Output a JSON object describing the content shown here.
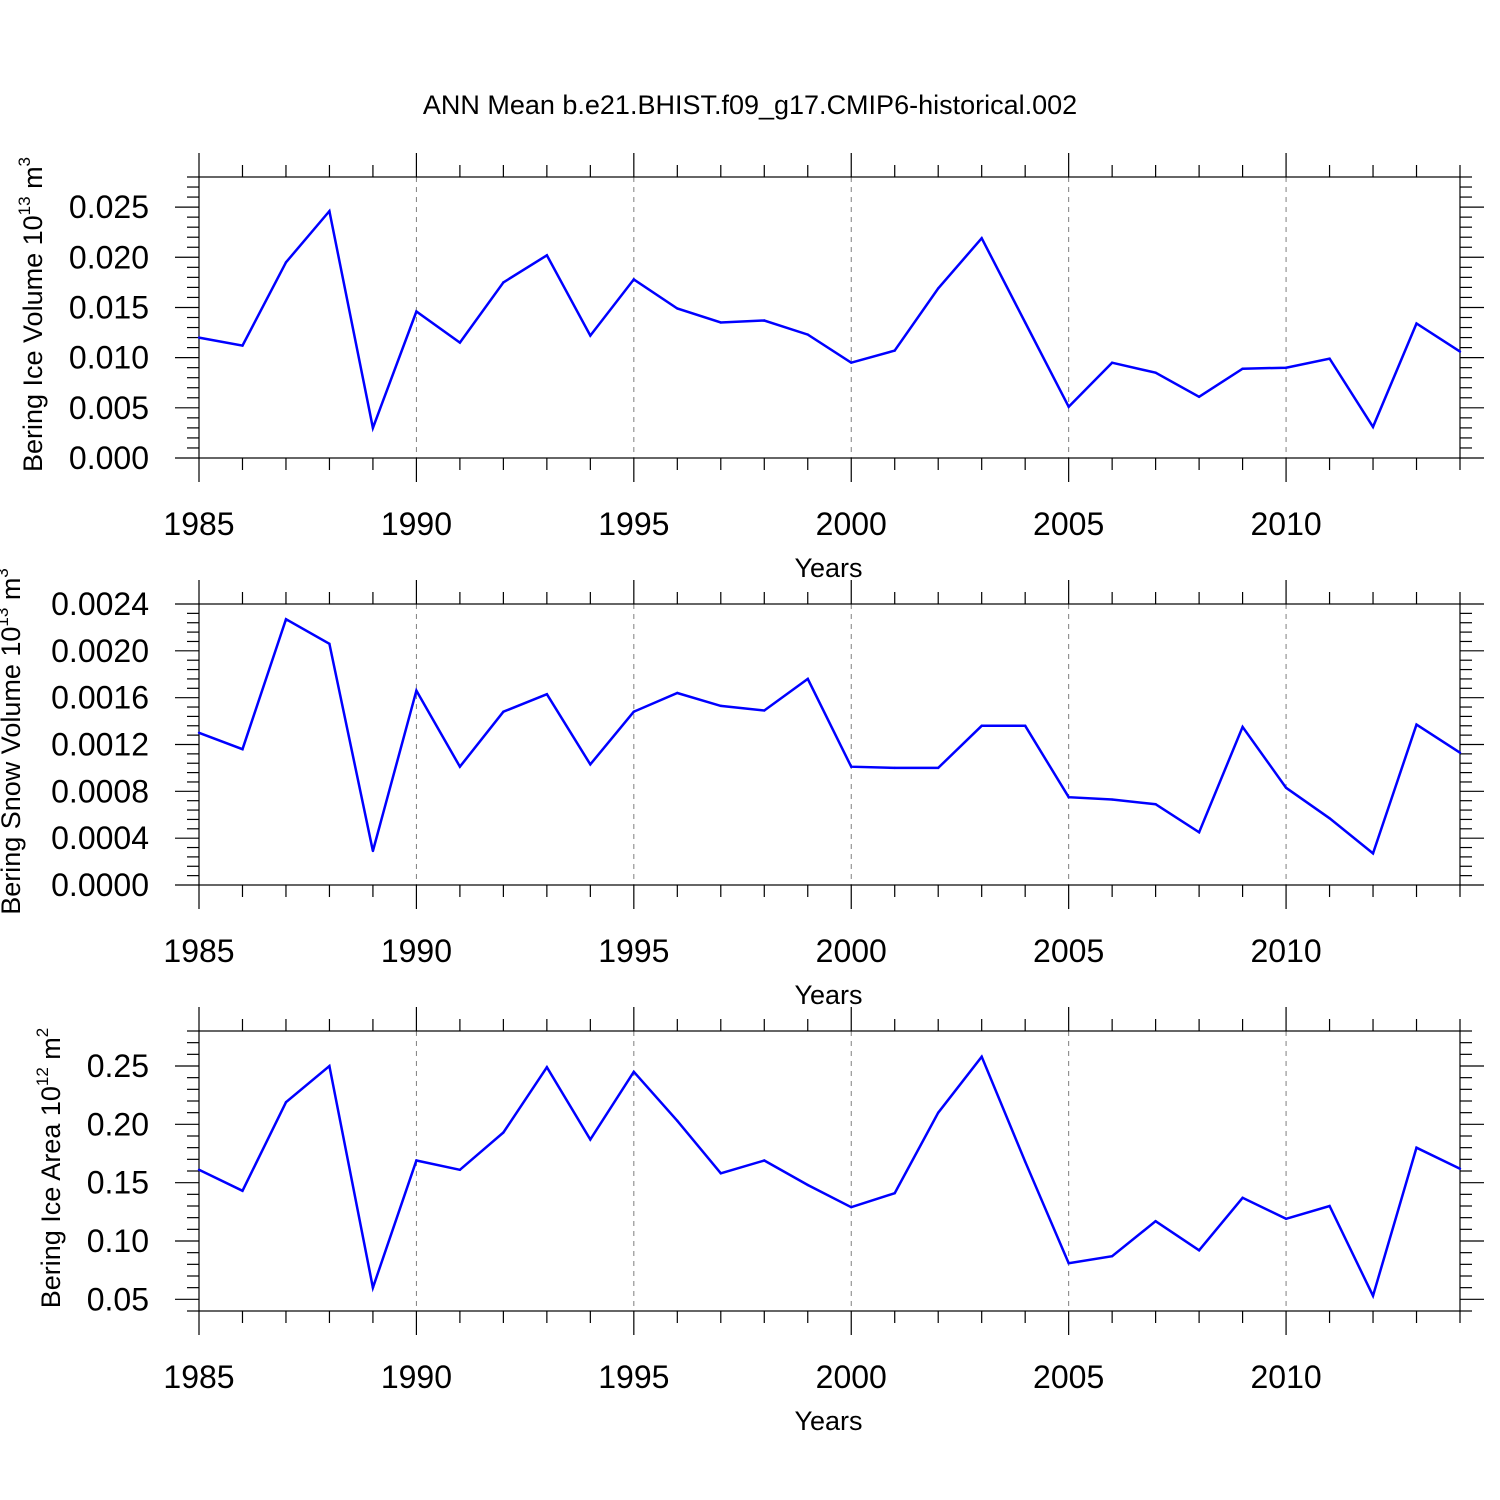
{
  "title": "ANN Mean b.e21.BHIST.f09_g17.CMIP6-historical.002",
  "colors": {
    "line": "#0000ff",
    "axis": "#000000",
    "grid": "#7f7f7f",
    "background": "#ffffff"
  },
  "chart_data": [
    {
      "type": "line",
      "ylabel": "Bering Ice Volume 10",
      "ylabel_exp": "13",
      "ylabel_unit": "m",
      "ylabel_unit_exp": "3",
      "xlabel": "Years",
      "xlim": [
        1985,
        2014
      ],
      "ylim": [
        0.0,
        0.028
      ],
      "x_ticks": [
        "1985",
        "1990",
        "1995",
        "2000",
        "2005",
        "2010"
      ],
      "y_ticks": [
        "0.000",
        "0.005",
        "0.010",
        "0.015",
        "0.020",
        "0.025"
      ],
      "grid": "vertical dashed at major x ticks",
      "series": [
        {
          "x": [
            1985,
            1986,
            1987,
            1988,
            1989,
            1990,
            1991,
            1992,
            1993,
            1994,
            1995,
            1996,
            1997,
            1998,
            1999,
            2000,
            2001,
            2002,
            2003,
            2004,
            2005,
            2006,
            2007,
            2008,
            2009,
            2010,
            2011,
            2012,
            2013,
            2014
          ],
          "values": [
            0.012,
            0.0112,
            0.0195,
            0.0246,
            0.003,
            0.0146,
            0.0115,
            0.0175,
            0.0202,
            0.0122,
            0.0178,
            0.0149,
            0.0135,
            0.0137,
            0.0123,
            0.0095,
            0.0107,
            0.0169,
            0.0219,
            0.0135,
            0.0051,
            0.0095,
            0.0085,
            0.0061,
            0.0089,
            0.009,
            0.0099,
            0.0031,
            0.0134,
            0.0106
          ]
        }
      ]
    },
    {
      "type": "line",
      "ylabel": "Bering Snow Volume 10",
      "ylabel_exp": "13",
      "ylabel_unit": "m",
      "ylabel_unit_exp": "3",
      "xlabel": "Years",
      "xlim": [
        1985,
        2014
      ],
      "ylim": [
        0.0,
        0.0024
      ],
      "x_ticks": [
        "1985",
        "1990",
        "1995",
        "2000",
        "2005",
        "2010"
      ],
      "y_ticks": [
        "0.0000",
        "0.0004",
        "0.0008",
        "0.0012",
        "0.0016",
        "0.0020",
        "0.0024"
      ],
      "grid": "vertical dashed at major x ticks",
      "series": [
        {
          "x": [
            1985,
            1986,
            1987,
            1988,
            1989,
            1990,
            1991,
            1992,
            1993,
            1994,
            1995,
            1996,
            1997,
            1998,
            1999,
            2000,
            2001,
            2002,
            2003,
            2004,
            2005,
            2006,
            2007,
            2008,
            2009,
            2010,
            2011,
            2012,
            2013,
            2014
          ],
          "values": [
            0.0013,
            0.00116,
            0.00227,
            0.00206,
            0.00029,
            0.00166,
            0.00101,
            0.00148,
            0.00163,
            0.00103,
            0.00148,
            0.00164,
            0.00153,
            0.00149,
            0.00176,
            0.00101,
            0.001,
            0.001,
            0.00136,
            0.00136,
            0.00075,
            0.00073,
            0.00069,
            0.00045,
            0.00135,
            0.00083,
            0.00057,
            0.00027,
            0.00137,
            0.00113
          ]
        }
      ]
    },
    {
      "type": "line",
      "ylabel": "Bering Ice Area 10",
      "ylabel_exp": "12",
      "ylabel_unit": "m",
      "ylabel_unit_exp": "2",
      "xlabel": "Years",
      "xlim": [
        1985,
        2014
      ],
      "ylim": [
        0.04,
        0.28
      ],
      "x_ticks": [
        "1985",
        "1990",
        "1995",
        "2000",
        "2005",
        "2010"
      ],
      "y_ticks": [
        "0.05",
        "0.10",
        "0.15",
        "0.20",
        "0.25"
      ],
      "grid": "vertical dashed at major x ticks",
      "series": [
        {
          "x": [
            1985,
            1986,
            1987,
            1988,
            1989,
            1990,
            1991,
            1992,
            1993,
            1994,
            1995,
            1996,
            1997,
            1998,
            1999,
            2000,
            2001,
            2002,
            2003,
            2004,
            2005,
            2006,
            2007,
            2008,
            2009,
            2010,
            2011,
            2012,
            2013,
            2014
          ],
          "values": [
            0.161,
            0.143,
            0.219,
            0.25,
            0.06,
            0.169,
            0.161,
            0.193,
            0.249,
            0.187,
            0.245,
            0.203,
            0.158,
            0.169,
            0.148,
            0.129,
            0.141,
            0.21,
            0.258,
            0.168,
            0.081,
            0.087,
            0.117,
            0.092,
            0.137,
            0.119,
            0.13,
            0.053,
            0.18,
            0.162
          ]
        }
      ]
    }
  ]
}
